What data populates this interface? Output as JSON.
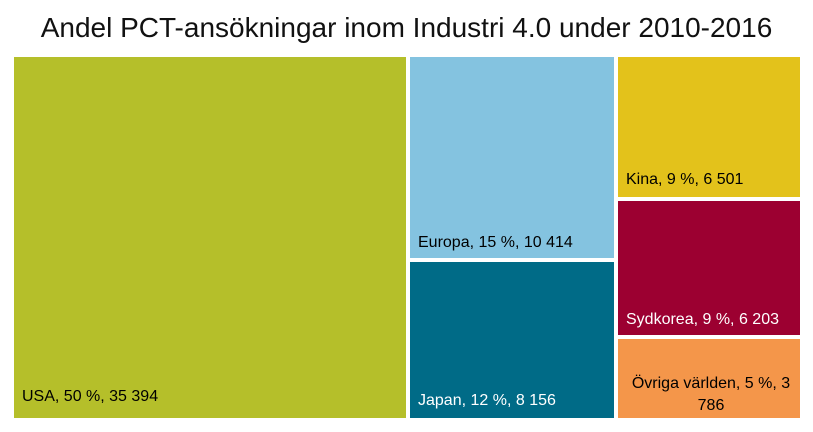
{
  "chart_data": {
    "type": "treemap",
    "title": "Andel PCT-ansökningar inom Industri 4.0 under 2010-2016",
    "series": [
      {
        "items": [
          {
            "name": "USA",
            "share": 50,
            "value": 35394,
            "label": "USA, 50 %, 35 394",
            "color": "#b5bf2a",
            "text_color": "#000000"
          },
          {
            "name": "Europa",
            "share": 15,
            "value": 10414,
            "label": "Europa, 15 %, 10 414",
            "color": "#84c3e0",
            "text_color": "#000000"
          },
          {
            "name": "Japan",
            "share": 12,
            "value": 8156,
            "label": "Japan, 12 %, 8 156",
            "color": "#006b87",
            "text_color": "#ffffff"
          },
          {
            "name": "Kina",
            "share": 9,
            "value": 6501,
            "label": "Kina, 9 %, 6 501",
            "color": "#e3c21b",
            "text_color": "#000000"
          },
          {
            "name": "Sydkorea",
            "share": 9,
            "value": 6203,
            "label": "Sydkorea, 9 %, 6 203",
            "color": "#9c0031",
            "text_color": "#ffffff"
          },
          {
            "name": "Övriga världen",
            "share": 5,
            "value": 3786,
            "label": "Övriga världen, 5 %, 3 786",
            "color": "#f4964a",
            "text_color": "#000000"
          }
        ]
      }
    ]
  }
}
